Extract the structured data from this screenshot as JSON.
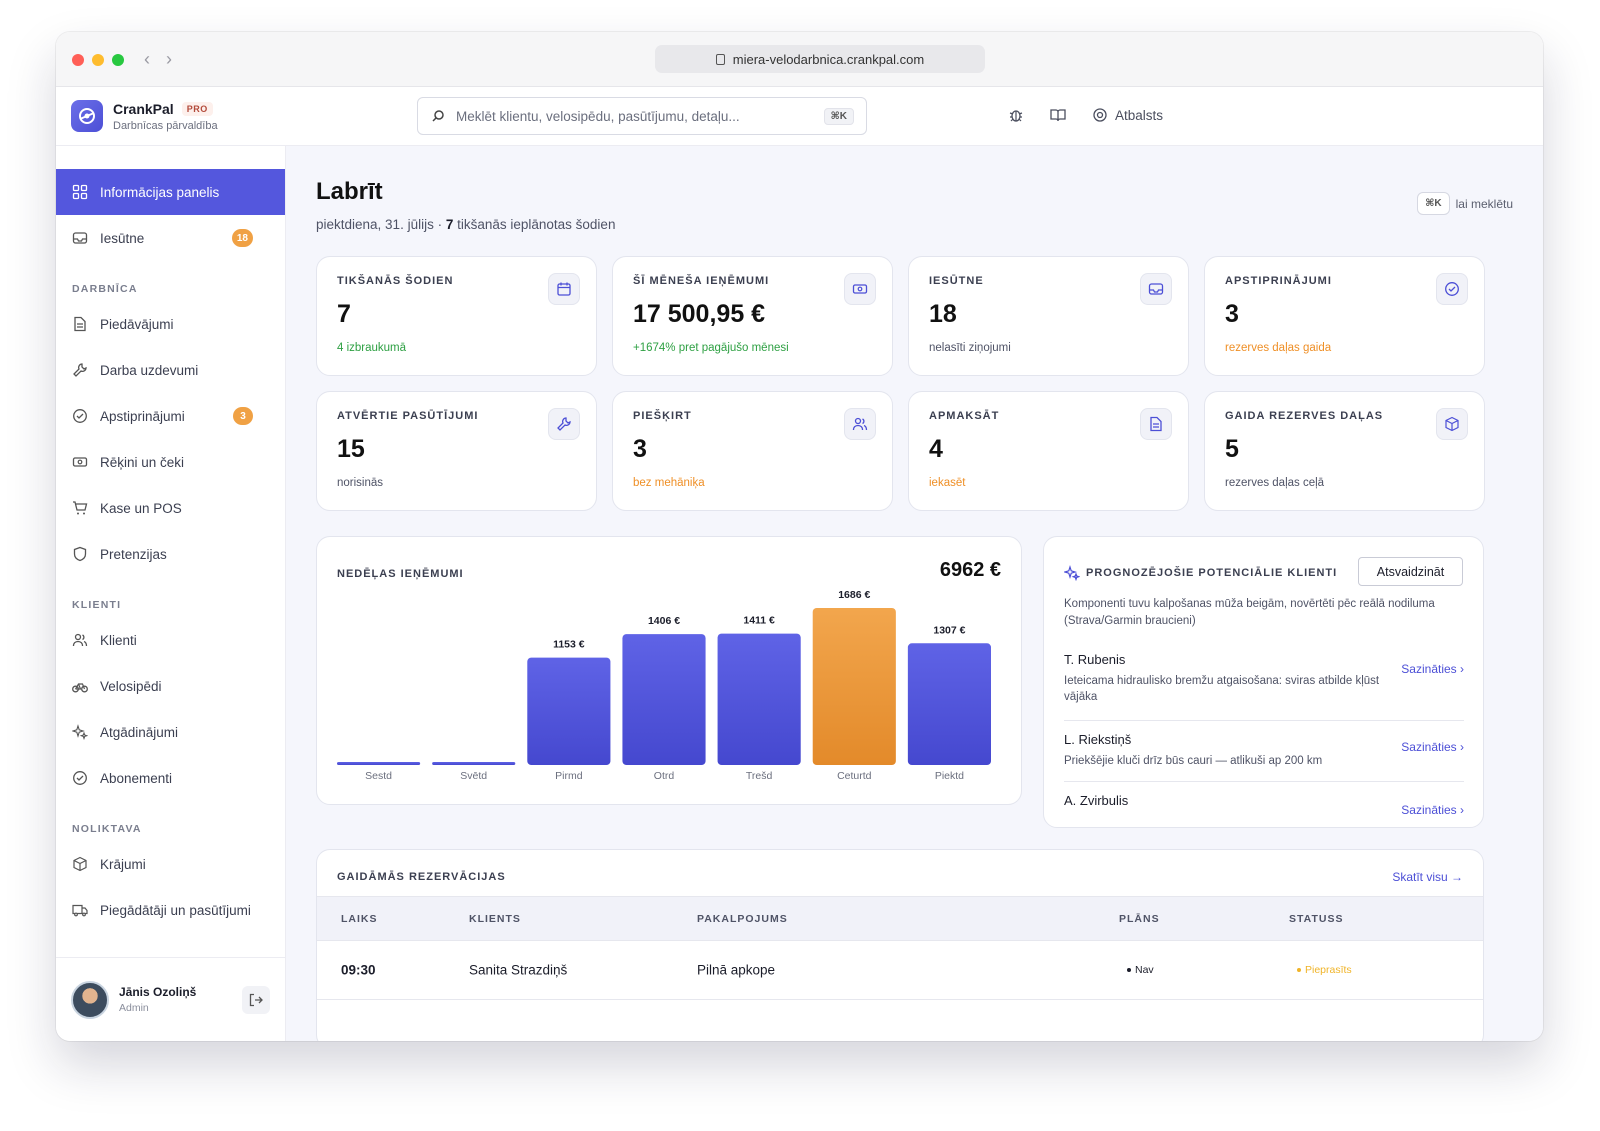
{
  "browser": {
    "url": "miera-velodarbnica.crankpal.com"
  },
  "brand": {
    "name": "CrankPal",
    "badge": "PRO",
    "subtitle": "Darbnīcas pārvaldība"
  },
  "search": {
    "placeholder": "Meklēt klientu, velosipēdu, pasūtījumu, detaļu...",
    "shortcut": "⌘K"
  },
  "topbar": {
    "support_label": "Atbalsts"
  },
  "sidebar": {
    "dashboard": "Informācijas panelis",
    "inbox": {
      "label": "Iesūtne",
      "badge": "18"
    },
    "sections": {
      "workshop": "DARBNĪCA",
      "clients": "KLIENTI",
      "warehouse": "NOLIKTAVA"
    },
    "workshop_items": [
      "Piedāvājumi",
      "Darba uzdevumi",
      "Apstiprinājumi",
      "Rēķini un čeki",
      "Kase un POS",
      "Pretenzijas"
    ],
    "approvals_badge": "3",
    "client_items": [
      "Klienti",
      "Velosipēdi",
      "Atgādinājumi",
      "Abonementi"
    ],
    "warehouse_items": [
      "Krājumi",
      "Piegādātāji un pasūtījumi"
    ],
    "user": {
      "name": "Jānis Ozoliņš",
      "role": "Admin"
    }
  },
  "page": {
    "title": "Labrīt",
    "date": "piektdiena, 31. jūlijs · ",
    "meetings_count": "7",
    "meetings_text": " tikšanās ieplānotas šodien",
    "search_hint_key": "⌘K",
    "search_hint_text": "lai meklētu"
  },
  "stats": [
    {
      "label": "TIKŠANĀS ŠODIEN",
      "value": "7",
      "note": "4 izbraukumā",
      "tone": "green",
      "icon": "calendar-icon"
    },
    {
      "label": "ŠĪ MĒNEŠA IEŅĒMUMI",
      "value": "17 500,95 €",
      "note": "+1674% pret pagājušo mēnesi",
      "tone": "green",
      "icon": "money-icon"
    },
    {
      "label": "IESŪTNE",
      "value": "18",
      "note": "nelasīti ziņojumi",
      "tone": "gray",
      "icon": "inbox-icon"
    },
    {
      "label": "APSTIPRINĀJUMI",
      "value": "3",
      "note": "rezerves daļas gaida",
      "tone": "orange",
      "icon": "check-circle-icon"
    },
    {
      "label": "ATVĒRTIE PASŪTĪJUMI",
      "value": "15",
      "note": "norisinās",
      "tone": "gray",
      "icon": "wrench-icon"
    },
    {
      "label": "PIEŠĶIRT",
      "value": "3",
      "note": "bez mehāniķa",
      "tone": "orange",
      "icon": "users-icon"
    },
    {
      "label": "APMAKSĀT",
      "value": "4",
      "note": "iekasēt",
      "tone": "orange",
      "icon": "document-icon"
    },
    {
      "label": "GAIDA REZERVES DAĻAS",
      "value": "5",
      "note": "rezerves daļas ceļā",
      "tone": "gray",
      "icon": "box-icon"
    }
  ],
  "weekly": {
    "label": "NEDĒĻAS IEŅĒMUMI",
    "total": "6962 €"
  },
  "chart_data": {
    "type": "bar",
    "categories": [
      "Sestd",
      "Svētd",
      "Pirmd",
      "Otrd",
      "Trešd",
      "Ceturtd",
      "Piektd"
    ],
    "values": [
      0,
      0,
      1153,
      1406,
      1411,
      1686,
      1307
    ],
    "value_labels": [
      "",
      "",
      "1153 €",
      "1406 €",
      "1411 €",
      "1686 €",
      "1307 €"
    ],
    "highlight_index": 5,
    "colors": {
      "bar": "#5457dd",
      "highlight": "#f0a144"
    },
    "ylim": [
      0,
      1686
    ]
  },
  "leads": {
    "title": "PROGNOZĒJOŠIE POTENCIĀLIE KLIENTI",
    "refresh": "Atsvaidzināt",
    "description": "Komponenti tuvu kalpošanas mūža beigām, novērtēti pēc reālā nodiluma (Strava/Garmin braucieni)",
    "items": [
      {
        "name": "T. Rubenis",
        "text": "Ieteicama hidraulisko bremžu atgaisošana: sviras atbilde kļūst vājāka",
        "action": "Sazināties ›"
      },
      {
        "name": "L. Riekstiņš",
        "text": "Priekšējie kluči drīz būs cauri — atlikuši ap 200 km",
        "action": "Sazināties ›"
      },
      {
        "name": "A. Zvirbulis",
        "text": "",
        "action": "Sazināties ›"
      }
    ]
  },
  "bookings": {
    "title": "GAIDĀMĀS REZERVĀCIJAS",
    "view_all": "Skatīt visu →",
    "columns": [
      "LAIKS",
      "KLIENTS",
      "PAKALPOJUMS",
      "PLĀNS",
      "STATUSS"
    ],
    "rows": [
      {
        "time": "09:30",
        "client": "Sanita Strazdiņš",
        "service": "Pilnā apkope",
        "plan": "Nav",
        "status": "Pieprasīts"
      }
    ]
  }
}
